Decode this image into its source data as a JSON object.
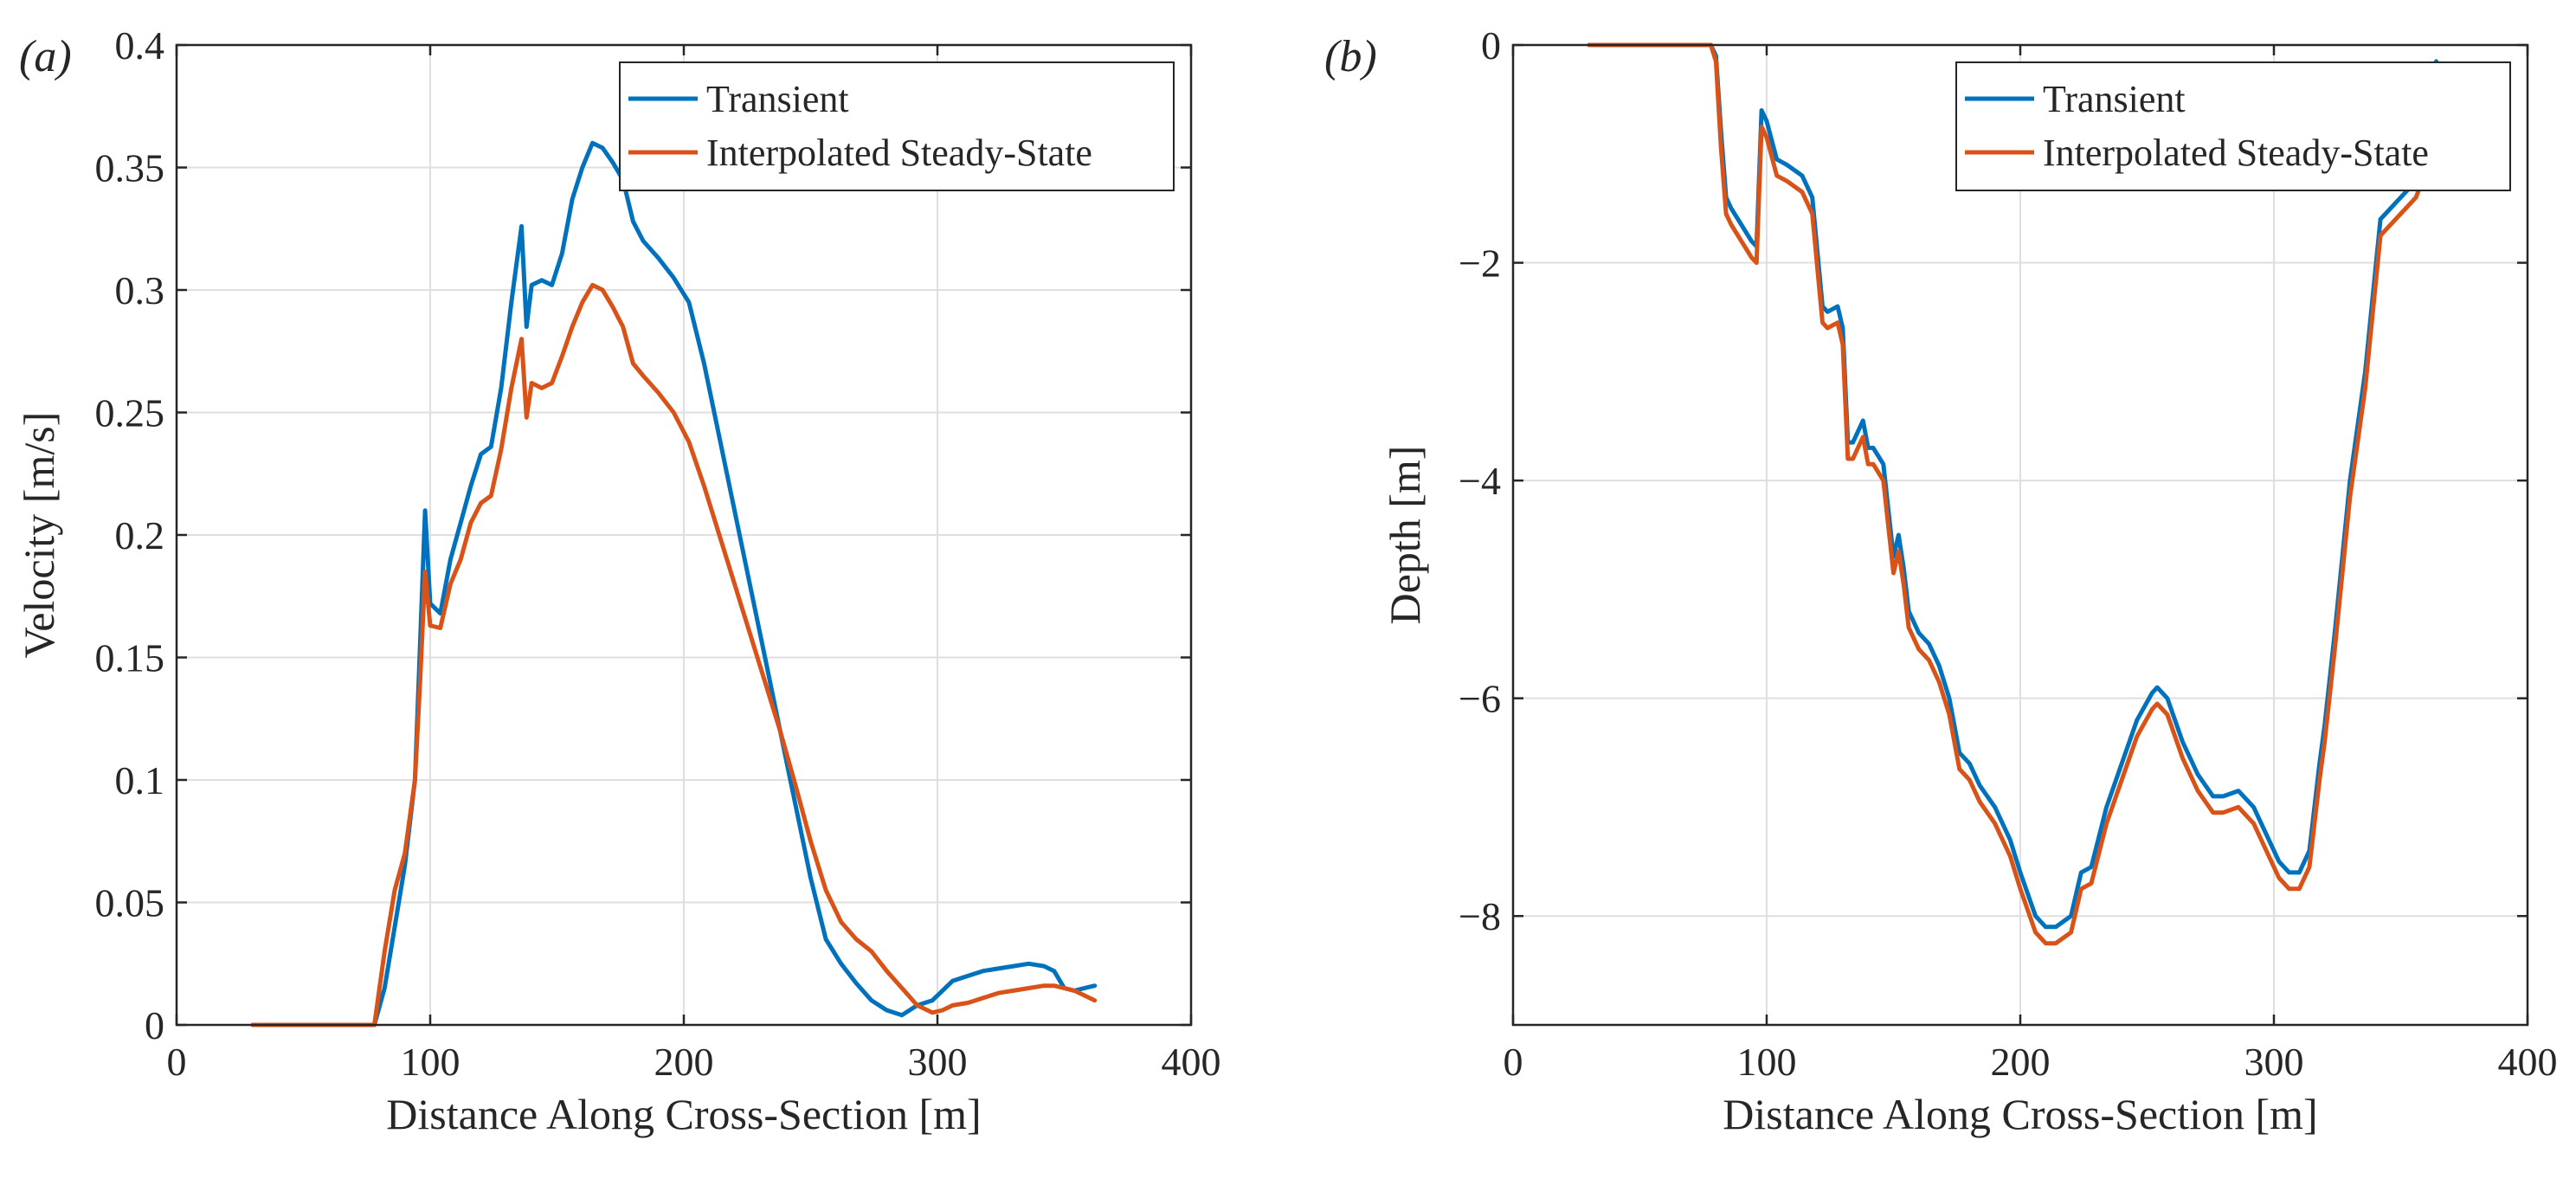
{
  "colors": {
    "transient": "#0072BD",
    "steady": "#D95319"
  },
  "chart_data": [
    {
      "type": "line",
      "panel_label": "(a)",
      "xlabel": "Distance Along Cross-Section [m]",
      "ylabel": "Velocity [m/s]",
      "xlim": [
        0,
        400
      ],
      "ylim": [
        0,
        0.4
      ],
      "xticks": [
        0,
        100,
        200,
        300,
        400
      ],
      "yticks": [
        0,
        0.05,
        0.1,
        0.15,
        0.2,
        0.25,
        0.3,
        0.35,
        0.4
      ],
      "xtick_labels": [
        "0",
        "100",
        "200",
        "300",
        "400"
      ],
      "ytick_labels": [
        "0",
        "0.05",
        "0.1",
        "0.15",
        "0.2",
        "0.25",
        "0.3",
        "0.35",
        "0.4"
      ],
      "grid": true,
      "legend_position": "top-right",
      "series": [
        {
          "name": "Transient",
          "color_key": "transient",
          "x": [
            30,
            78,
            82,
            86,
            90,
            94,
            96,
            98,
            100,
            104,
            108,
            112,
            116,
            120,
            124,
            128,
            132,
            136,
            138,
            140,
            144,
            148,
            152,
            156,
            160,
            164,
            168,
            172,
            176,
            180,
            184,
            190,
            196,
            202,
            208,
            214,
            220,
            226,
            232,
            238,
            244,
            250,
            256,
            262,
            268,
            274,
            280,
            286,
            292,
            298,
            302,
            306,
            312,
            318,
            324,
            330,
            336,
            342,
            346,
            350,
            354,
            358,
            362
          ],
          "y": [
            0,
            0,
            0.015,
            0.04,
            0.065,
            0.1,
            0.155,
            0.21,
            0.172,
            0.168,
            0.19,
            0.205,
            0.22,
            0.233,
            0.236,
            0.26,
            0.295,
            0.326,
            0.285,
            0.302,
            0.304,
            0.302,
            0.315,
            0.337,
            0.35,
            0.36,
            0.358,
            0.352,
            0.345,
            0.328,
            0.32,
            0.313,
            0.305,
            0.295,
            0.27,
            0.24,
            0.21,
            0.18,
            0.15,
            0.12,
            0.09,
            0.06,
            0.035,
            0.025,
            0.017,
            0.01,
            0.006,
            0.004,
            0.008,
            0.01,
            0.014,
            0.018,
            0.02,
            0.022,
            0.023,
            0.024,
            0.025,
            0.024,
            0.022,
            0.015,
            0.014,
            0.015,
            0.016
          ]
        },
        {
          "name": "Interpolated Steady-State",
          "color_key": "steady",
          "x": [
            30,
            78,
            82,
            86,
            90,
            94,
            96,
            98,
            100,
            104,
            108,
            112,
            116,
            120,
            124,
            128,
            132,
            136,
            138,
            140,
            144,
            148,
            152,
            156,
            160,
            164,
            168,
            172,
            176,
            180,
            184,
            190,
            196,
            202,
            208,
            214,
            220,
            226,
            232,
            238,
            244,
            250,
            256,
            262,
            268,
            274,
            280,
            286,
            292,
            298,
            302,
            306,
            312,
            318,
            324,
            330,
            336,
            342,
            346,
            350,
            354,
            358,
            362
          ],
          "y": [
            0,
            0,
            0.03,
            0.055,
            0.07,
            0.1,
            0.14,
            0.185,
            0.163,
            0.162,
            0.18,
            0.19,
            0.205,
            0.213,
            0.216,
            0.235,
            0.26,
            0.28,
            0.248,
            0.262,
            0.26,
            0.262,
            0.273,
            0.285,
            0.295,
            0.302,
            0.3,
            0.293,
            0.285,
            0.27,
            0.265,
            0.258,
            0.25,
            0.238,
            0.22,
            0.2,
            0.18,
            0.16,
            0.14,
            0.12,
            0.098,
            0.075,
            0.055,
            0.042,
            0.035,
            0.03,
            0.022,
            0.015,
            0.008,
            0.005,
            0.006,
            0.008,
            0.009,
            0.011,
            0.013,
            0.014,
            0.015,
            0.016,
            0.016,
            0.015,
            0.014,
            0.012,
            0.01
          ]
        }
      ]
    },
    {
      "type": "line",
      "panel_label": "(b)",
      "xlabel": "Distance Along Cross-Section [m]",
      "ylabel": "Depth [m]",
      "xlim": [
        0,
        400
      ],
      "ylim": [
        -9,
        0
      ],
      "xticks": [
        0,
        100,
        200,
        300,
        400
      ],
      "yticks": [
        -8,
        -6,
        -4,
        -2,
        0
      ],
      "xtick_labels": [
        "0",
        "100",
        "200",
        "300",
        "400"
      ],
      "ytick_labels": [
        "−8",
        "−6",
        "−4",
        "−2",
        "0"
      ],
      "grid": true,
      "legend_position": "top-right",
      "series": [
        {
          "name": "Transient",
          "color_key": "transient",
          "x": [
            30,
            78,
            80,
            82,
            84,
            86,
            90,
            94,
            96,
            98,
            100,
            104,
            108,
            114,
            118,
            120,
            122,
            124,
            128,
            130,
            132,
            134,
            138,
            140,
            142,
            146,
            150,
            152,
            154,
            156,
            160,
            164,
            168,
            172,
            176,
            180,
            184,
            190,
            196,
            200,
            206,
            210,
            214,
            220,
            224,
            228,
            234,
            240,
            246,
            252,
            254,
            258,
            264,
            270,
            276,
            280,
            286,
            292,
            296,
            302,
            306,
            310,
            314,
            318,
            320,
            324,
            330,
            336,
            342,
            344,
            350,
            356,
            360,
            364
          ],
          "y": [
            0,
            0,
            -0.1,
            -0.8,
            -1.4,
            -1.5,
            -1.65,
            -1.8,
            -1.85,
            -0.6,
            -0.7,
            -1.05,
            -1.1,
            -1.2,
            -1.4,
            -1.9,
            -2.4,
            -2.45,
            -2.4,
            -2.6,
            -3.65,
            -3.65,
            -3.45,
            -3.7,
            -3.7,
            -3.85,
            -4.7,
            -4.5,
            -4.8,
            -5.2,
            -5.4,
            -5.5,
            -5.7,
            -6.0,
            -6.5,
            -6.6,
            -6.8,
            -7.0,
            -7.3,
            -7.6,
            -8.0,
            -8.1,
            -8.1,
            -8.0,
            -7.6,
            -7.55,
            -7.0,
            -6.6,
            -6.2,
            -5.95,
            -5.9,
            -6.0,
            -6.4,
            -6.7,
            -6.9,
            -6.9,
            -6.85,
            -7.0,
            -7.2,
            -7.5,
            -7.6,
            -7.6,
            -7.4,
            -6.6,
            -6.25,
            -5.4,
            -4.0,
            -3.0,
            -1.6,
            -1.55,
            -1.4,
            -1.25,
            -1.0,
            -0.15
          ]
        },
        {
          "name": "Interpolated Steady-State",
          "color_key": "steady",
          "x": [
            30,
            78,
            80,
            82,
            84,
            86,
            90,
            94,
            96,
            98,
            100,
            104,
            108,
            114,
            118,
            120,
            122,
            124,
            128,
            130,
            132,
            134,
            138,
            140,
            142,
            146,
            150,
            152,
            154,
            156,
            160,
            164,
            168,
            172,
            176,
            180,
            184,
            190,
            196,
            200,
            206,
            210,
            214,
            220,
            224,
            228,
            234,
            240,
            246,
            252,
            254,
            258,
            264,
            270,
            276,
            280,
            286,
            292,
            296,
            302,
            306,
            310,
            314,
            318,
            320,
            324,
            330,
            336,
            342,
            344,
            350,
            356,
            360,
            364
          ],
          "y": [
            0,
            0,
            -0.15,
            -0.95,
            -1.55,
            -1.65,
            -1.8,
            -1.95,
            -2.0,
            -0.75,
            -0.85,
            -1.2,
            -1.25,
            -1.35,
            -1.55,
            -2.05,
            -2.55,
            -2.6,
            -2.55,
            -2.75,
            -3.8,
            -3.8,
            -3.6,
            -3.85,
            -3.85,
            -4.0,
            -4.85,
            -4.65,
            -4.95,
            -5.35,
            -5.55,
            -5.65,
            -5.85,
            -6.15,
            -6.65,
            -6.75,
            -6.95,
            -7.15,
            -7.45,
            -7.75,
            -8.15,
            -8.25,
            -8.25,
            -8.15,
            -7.75,
            -7.7,
            -7.15,
            -6.75,
            -6.35,
            -6.1,
            -6.05,
            -6.15,
            -6.55,
            -6.85,
            -7.05,
            -7.05,
            -7.0,
            -7.15,
            -7.35,
            -7.65,
            -7.75,
            -7.75,
            -7.55,
            -6.75,
            -6.4,
            -5.55,
            -4.15,
            -3.15,
            -1.75,
            -1.7,
            -1.55,
            -1.4,
            -1.15,
            -0.3
          ]
        }
      ]
    }
  ]
}
